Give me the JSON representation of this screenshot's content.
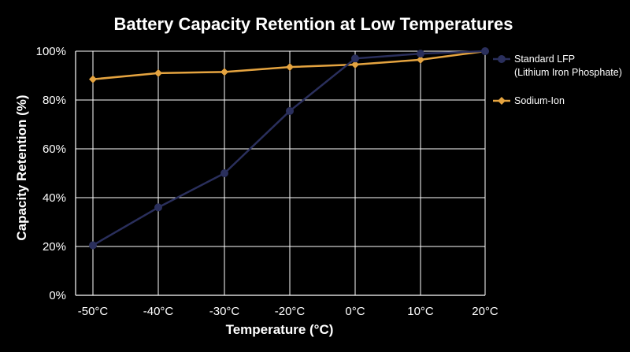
{
  "chart_data": {
    "type": "line",
    "title": "Battery Capacity Retention at Low Temperatures",
    "xlabel": "Temperature (°C)",
    "ylabel": "Capacity Retention (%)",
    "categories": [
      "-50°C",
      "-40°C",
      "-30°C",
      "-20°C",
      "0°C",
      "10°C",
      "20°C"
    ],
    "x": [
      -50,
      -40,
      -30,
      -20,
      0,
      10,
      20
    ],
    "ylim": [
      0,
      100
    ],
    "yticks": [
      0,
      20,
      40,
      60,
      80,
      100
    ],
    "ytick_labels": [
      "0%",
      "20%",
      "40%",
      "60%",
      "80%",
      "100%"
    ],
    "grid": true,
    "legend_position": "right",
    "series": [
      {
        "name": "Standard LFP",
        "name_line2": "(Lithium Iron Phosphate)",
        "color": "#2a2f5c",
        "marker": "circle",
        "values": [
          20.5,
          36,
          50,
          75.5,
          97,
          99,
          100
        ]
      },
      {
        "name": "Sodium-Ion",
        "color": "#e5a440",
        "marker": "diamond",
        "values": [
          88.5,
          91,
          91.5,
          93.5,
          94.5,
          96.5,
          100
        ]
      }
    ]
  }
}
